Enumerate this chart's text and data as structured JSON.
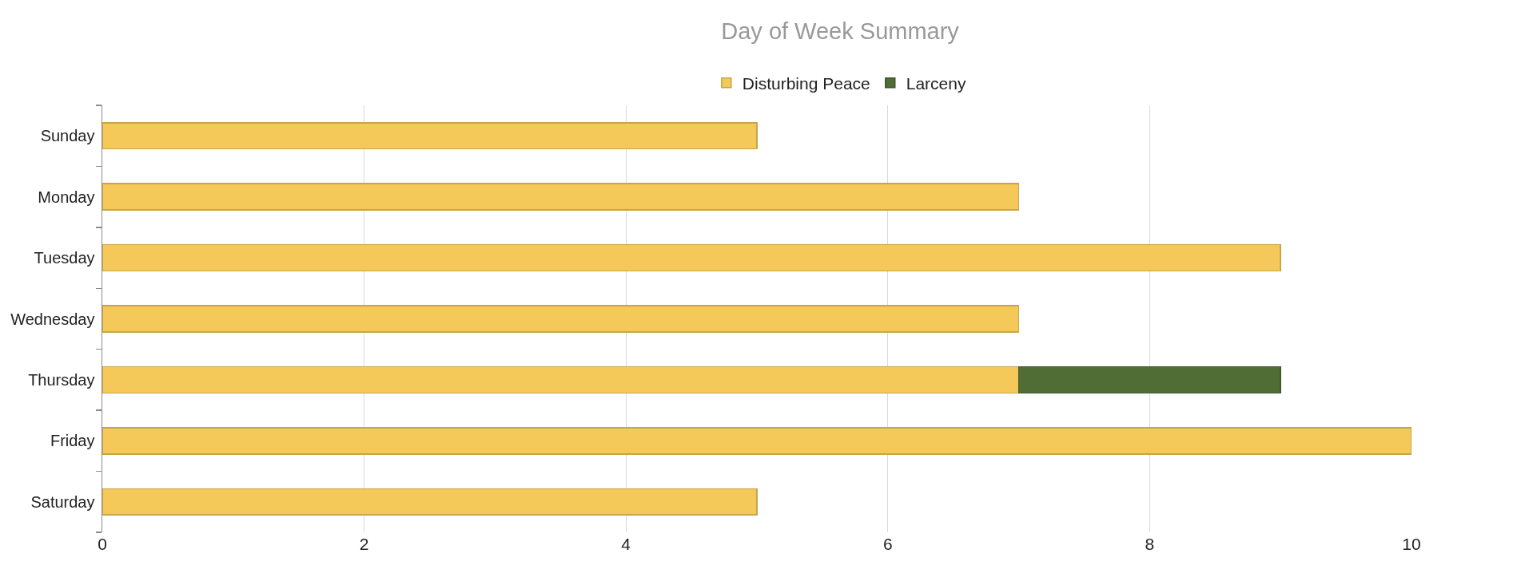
{
  "chart_data": {
    "type": "bar",
    "title": "Day of Week Summary",
    "orientation": "horizontal",
    "stacked": true,
    "categories": [
      "Sunday",
      "Monday",
      "Tuesday",
      "Wednesday",
      "Thursday",
      "Friday",
      "Saturday"
    ],
    "series": [
      {
        "name": "Disturbing Peace",
        "color": "#f5c85a",
        "values": [
          5,
          7,
          9,
          7,
          7,
          10,
          5
        ]
      },
      {
        "name": "Larceny",
        "color": "#4f6d34",
        "values": [
          null,
          null,
          null,
          null,
          2,
          null,
          null
        ]
      }
    ],
    "xlim": [
      0,
      10
    ],
    "xticks": [
      0,
      2,
      4,
      6,
      8,
      10
    ],
    "grid": "x",
    "legend": "top"
  }
}
